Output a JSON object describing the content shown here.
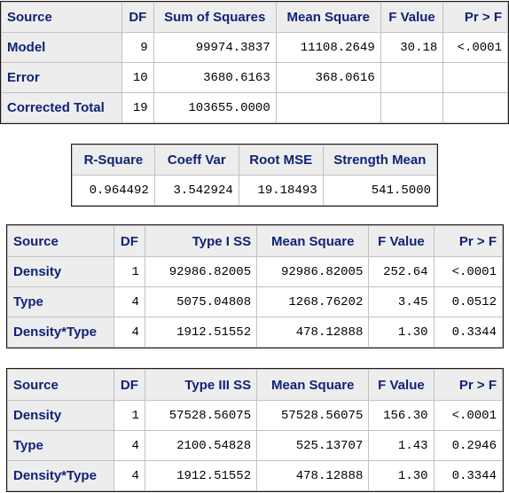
{
  "anova": {
    "headers": [
      "Source",
      "DF",
      "Sum of Squares",
      "Mean Square",
      "F Value",
      "Pr > F"
    ],
    "rows": [
      {
        "source": "Model",
        "df": "9",
        "ss": "99974.3837",
        "ms": "11108.2649",
        "f": "30.18",
        "p": "<.0001"
      },
      {
        "source": "Error",
        "df": "10",
        "ss": "3680.6163",
        "ms": "368.0616",
        "f": "",
        "p": ""
      },
      {
        "source": "Corrected Total",
        "df": "19",
        "ss": "103655.0000",
        "ms": "",
        "f": "",
        "p": ""
      }
    ]
  },
  "fit": {
    "headers": [
      "R-Square",
      "Coeff Var",
      "Root MSE",
      "Strength Mean"
    ],
    "values": [
      "0.964492",
      "3.542924",
      "19.18493",
      "541.5000"
    ]
  },
  "type1": {
    "headers": [
      "Source",
      "DF",
      "Type I SS",
      "Mean Square",
      "F Value",
      "Pr > F"
    ],
    "rows": [
      {
        "source": "Density",
        "df": "1",
        "ss": "92986.82005",
        "ms": "92986.82005",
        "f": "252.64",
        "p": "<.0001"
      },
      {
        "source": "Type",
        "df": "4",
        "ss": "5075.04808",
        "ms": "1268.76202",
        "f": "3.45",
        "p": "0.0512"
      },
      {
        "source": "Density*Type",
        "df": "4",
        "ss": "1912.51552",
        "ms": "478.12888",
        "f": "1.30",
        "p": "0.3344"
      }
    ]
  },
  "type3": {
    "headers": [
      "Source",
      "DF",
      "Type III SS",
      "Mean Square",
      "F Value",
      "Pr > F"
    ],
    "rows": [
      {
        "source": "Density",
        "df": "1",
        "ss": "57528.56075",
        "ms": "57528.56075",
        "f": "156.30",
        "p": "<.0001"
      },
      {
        "source": "Type",
        "df": "4",
        "ss": "2100.54828",
        "ms": "525.13707",
        "f": "1.43",
        "p": "0.2946"
      },
      {
        "source": "Density*Type",
        "df": "4",
        "ss": "1912.51552",
        "ms": "478.12888",
        "f": "1.30",
        "p": "0.3344"
      }
    ]
  }
}
